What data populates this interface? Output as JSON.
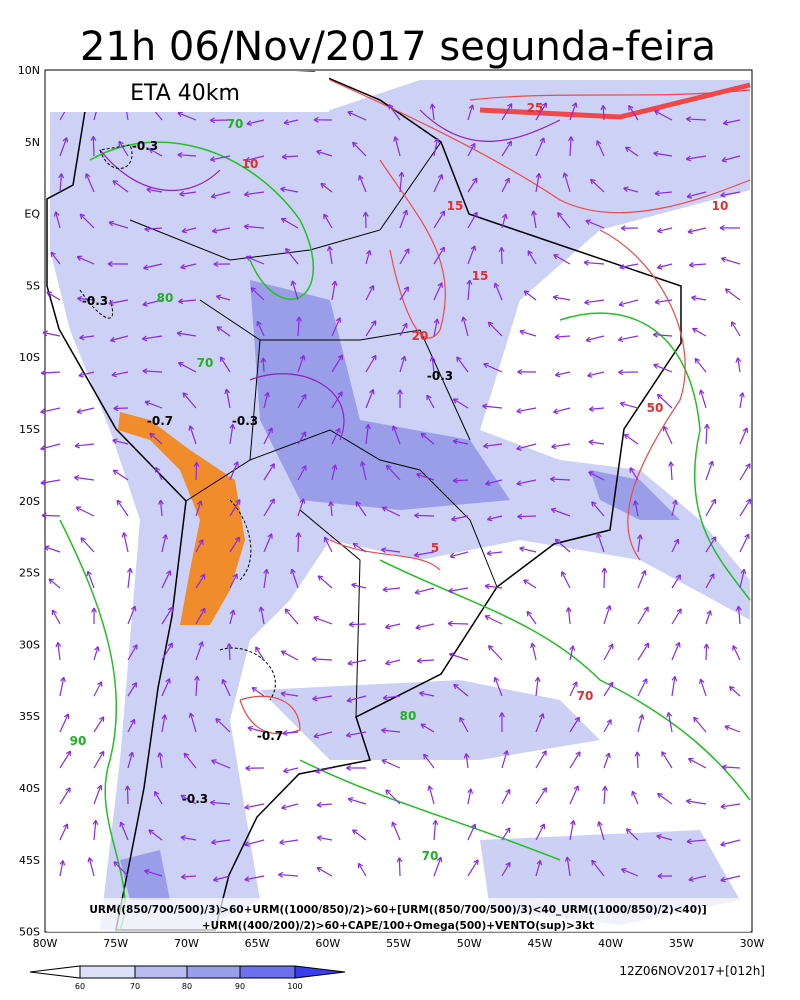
{
  "title": "21h 06/Nov/2017 segunda-feira",
  "model_label": "ETA 40km",
  "lat_labels": [
    "10N",
    "5N",
    "EQ",
    "5S",
    "10S",
    "15S",
    "20S",
    "25S",
    "30S",
    "35S",
    "40S",
    "45S",
    "50S"
  ],
  "lon_labels": [
    "80W",
    "75W",
    "70W",
    "65W",
    "60W",
    "55W",
    "50W",
    "45W",
    "40W",
    "35W",
    "30W"
  ],
  "contour_labels": [
    "-0.3",
    "-0.3",
    "-0.3",
    "-0.7",
    "-0.3",
    "-0.7",
    "-0.3",
    "70",
    "80",
    "70",
    "90",
    "70",
    "80",
    "5",
    "10",
    "15",
    "20",
    "25",
    "10",
    "15",
    "50",
    "70"
  ],
  "formula": [
    "URM((850/700/500)/3)>60+URM((1000/850)/2)>60+[URM((850/700/500)/3)<40_URM((1000/850)/2)<40)]",
    "+URM((400/200)/2)>60+CAPE/100+Omega(500)+VENTO(sup)>3kt"
  ],
  "colorbar_labels": [
    "60",
    "70",
    "80",
    "90",
    "100"
  ],
  "run_label": "12Z06NOV2017+[012h]"
}
